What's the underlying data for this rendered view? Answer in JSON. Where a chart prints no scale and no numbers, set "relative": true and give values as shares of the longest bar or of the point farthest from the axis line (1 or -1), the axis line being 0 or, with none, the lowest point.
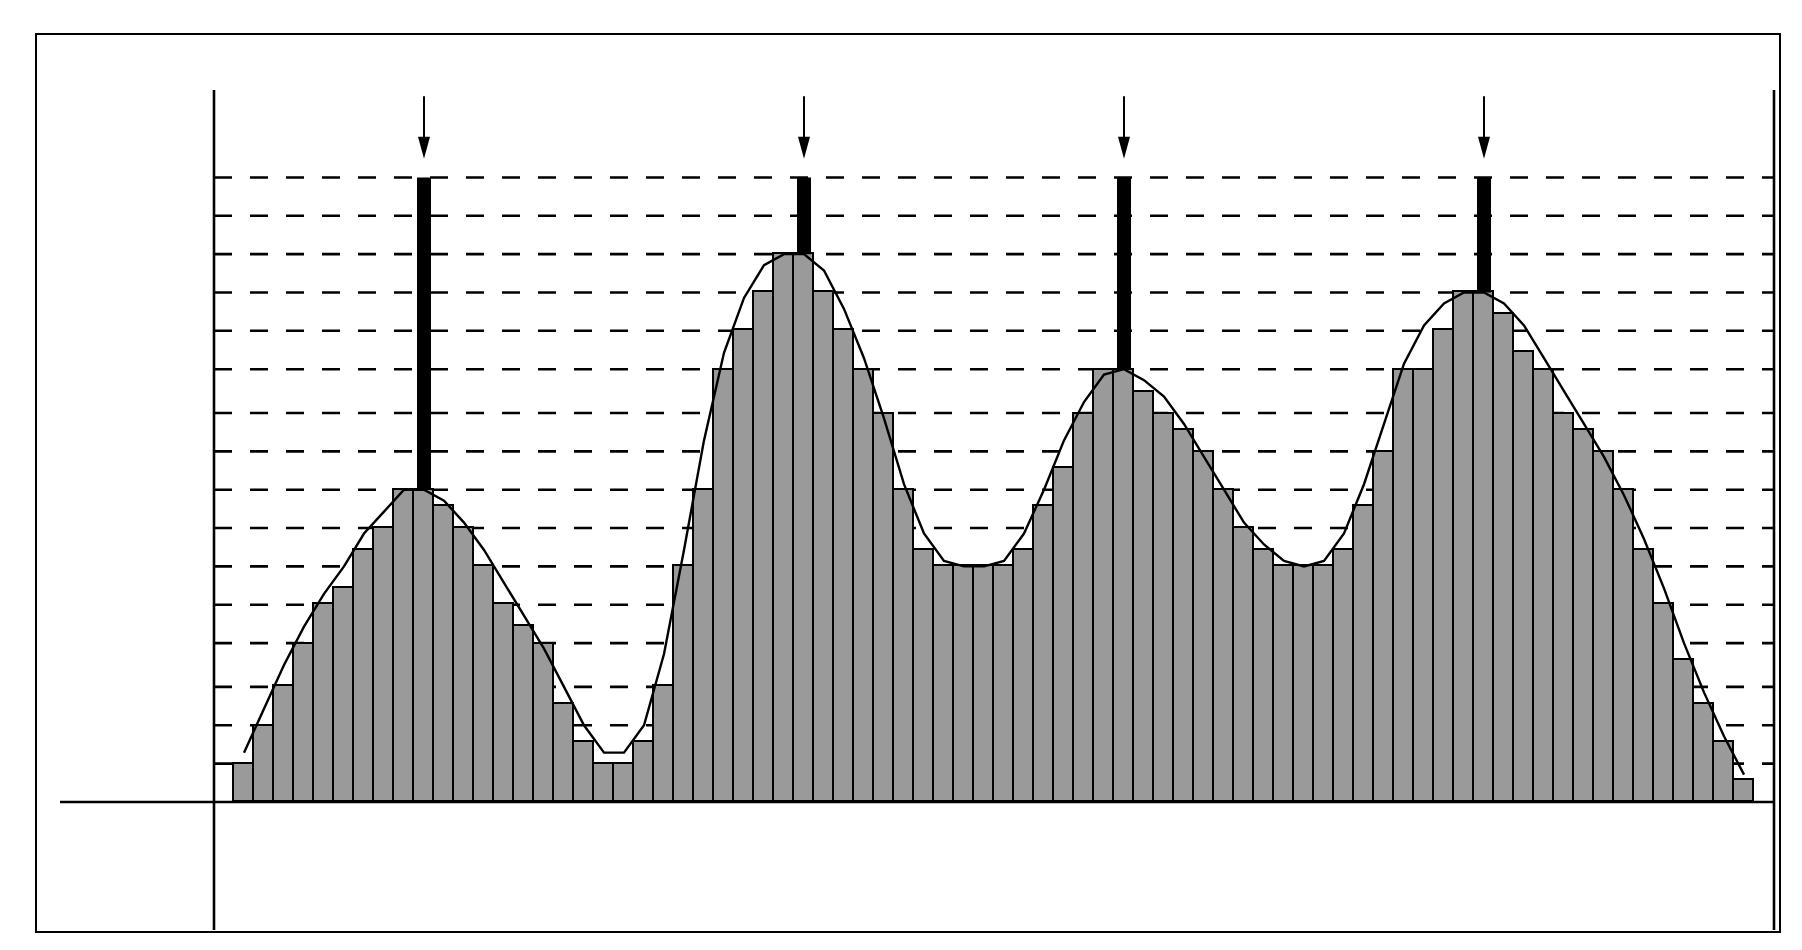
{
  "chart_data": [
    {
      "type": "bar",
      "relative": true,
      "categories": [
        null,
        null,
        null,
        null,
        null,
        null,
        null,
        null,
        null,
        null,
        null,
        null,
        null,
        null,
        null,
        null,
        null,
        null,
        null,
        null,
        null,
        null,
        null,
        null,
        null,
        null,
        null,
        null,
        null,
        null,
        null,
        null,
        null,
        null,
        null,
        null,
        null,
        null,
        null,
        null,
        null,
        null,
        null,
        null,
        null,
        null,
        null,
        null,
        null,
        null,
        null,
        null,
        null,
        null,
        null,
        null,
        null,
        null,
        null,
        null,
        null,
        null,
        null,
        null,
        null,
        null,
        null,
        null,
        null,
        null,
        null,
        null,
        null,
        null,
        null,
        null
      ],
      "series": [
        {
          "color": "#9a9a9a",
          "values": [
            0.07,
            0.14,
            0.21,
            0.29,
            0.36,
            0.39,
            0.46,
            0.5,
            0.57,
            0.57,
            0.54,
            0.5,
            0.43,
            0.36,
            0.32,
            0.29,
            0.18,
            0.11,
            0.07,
            0.07,
            0.11,
            0.21,
            0.43,
            0.57,
            0.79,
            0.86,
            0.93,
            1,
            1,
            0.93,
            0.86,
            0.79,
            0.71,
            0.57,
            0.46,
            0.43,
            0.43,
            0.43,
            0.43,
            0.46,
            0.54,
            0.61,
            0.71,
            0.79,
            0.79,
            0.75,
            0.71,
            0.68,
            0.64,
            0.57,
            0.5,
            0.46,
            0.43,
            0.43,
            0.43,
            0.46,
            0.54,
            0.64,
            0.79,
            0.79,
            0.86,
            0.93,
            0.93,
            0.89,
            0.82,
            0.79,
            0.71,
            0.68,
            0.64,
            0.57,
            0.46,
            0.36,
            0.26,
            0.18,
            0.11,
            0.04
          ]
        }
      ]
    },
    {
      "type": "line",
      "relative": true,
      "marker": "none",
      "line_style": "solid",
      "categories": [
        null,
        null,
        null,
        null,
        null,
        null,
        null,
        null,
        null,
        null,
        null,
        null,
        null,
        null,
        null,
        null,
        null,
        null,
        null,
        null,
        null,
        null,
        null,
        null,
        null,
        null,
        null,
        null,
        null,
        null,
        null,
        null,
        null,
        null,
        null,
        null,
        null,
        null,
        null,
        null,
        null,
        null,
        null,
        null,
        null,
        null,
        null,
        null,
        null,
        null,
        null,
        null,
        null,
        null,
        null,
        null,
        null,
        null,
        null,
        null,
        null,
        null,
        null,
        null,
        null,
        null,
        null,
        null,
        null,
        null,
        null,
        null,
        null,
        null,
        null,
        null
      ],
      "series": [
        {
          "color": "#000000",
          "values": [
            0.09,
            0.17,
            0.25,
            0.32,
            0.38,
            0.43,
            0.49,
            0.53,
            0.57,
            0.57,
            0.55,
            0.51,
            0.46,
            0.4,
            0.34,
            0.28,
            0.21,
            0.14,
            0.09,
            0.09,
            0.14,
            0.27,
            0.46,
            0.66,
            0.82,
            0.92,
            0.98,
            1,
            1,
            0.97,
            0.9,
            0.81,
            0.7,
            0.58,
            0.49,
            0.44,
            0.43,
            0.43,
            0.44,
            0.49,
            0.57,
            0.66,
            0.73,
            0.78,
            0.79,
            0.77,
            0.74,
            0.69,
            0.63,
            0.57,
            0.51,
            0.47,
            0.44,
            0.43,
            0.44,
            0.49,
            0.58,
            0.69,
            0.8,
            0.87,
            0.91,
            0.93,
            0.93,
            0.91,
            0.87,
            0.81,
            0.75,
            0.69,
            0.63,
            0.56,
            0.48,
            0.39,
            0.29,
            0.2,
            0.12,
            0.05
          ]
        }
      ],
      "ref_lines": [
        {
          "axis": "y",
          "value": 0.07,
          "color": "#000000",
          "line_style": "dashed"
        },
        {
          "axis": "y",
          "value": 0.14,
          "color": "#000000",
          "line_style": "dashed"
        },
        {
          "axis": "y",
          "value": 0.21,
          "color": "#000000",
          "line_style": "dashed"
        },
        {
          "axis": "y",
          "value": 0.29,
          "color": "#000000",
          "line_style": "dashed"
        },
        {
          "axis": "y",
          "value": 0.36,
          "color": "#000000",
          "line_style": "dashed"
        },
        {
          "axis": "y",
          "value": 0.43,
          "color": "#000000",
          "line_style": "dashed"
        },
        {
          "axis": "y",
          "value": 0.5,
          "color": "#000000",
          "line_style": "dashed"
        },
        {
          "axis": "y",
          "value": 0.57,
          "color": "#000000",
          "line_style": "dashed"
        },
        {
          "axis": "y",
          "value": 0.64,
          "color": "#000000",
          "line_style": "dashed"
        },
        {
          "axis": "y",
          "value": 0.71,
          "color": "#000000",
          "line_style": "dashed"
        },
        {
          "axis": "y",
          "value": 0.79,
          "color": "#000000",
          "line_style": "dashed"
        },
        {
          "axis": "y",
          "value": 0.86,
          "color": "#000000",
          "line_style": "dashed"
        },
        {
          "axis": "y",
          "value": 0.93,
          "color": "#000000",
          "line_style": "dashed"
        },
        {
          "axis": "y",
          "value": 1,
          "color": "#000000",
          "line_style": "dashed"
        },
        {
          "axis": "y",
          "value": 1.07,
          "color": "#000000",
          "line_style": "dashed"
        },
        {
          "axis": "y",
          "value": 1.14,
          "color": "#000000",
          "line_style": "dashed"
        }
      ]
    }
  ]
}
